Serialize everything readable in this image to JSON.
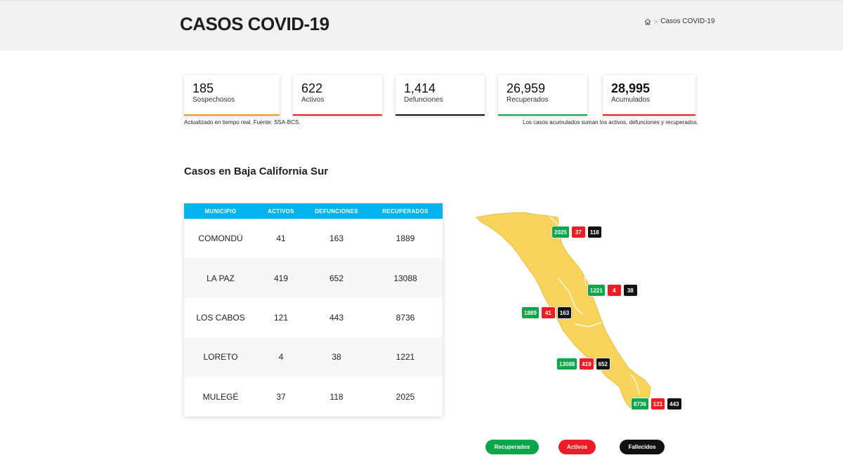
{
  "header": {
    "title": "CASOS COVID-19",
    "breadcrumb_current": "Casos COVID-19"
  },
  "stats": [
    {
      "value": "185",
      "label": "Sospechosos",
      "color": "#f7941d"
    },
    {
      "value": "622",
      "label": "Activos",
      "color": "#ee1c24"
    },
    {
      "value": "1,414",
      "label": "Defunciones",
      "color": "#111111"
    },
    {
      "value": "26,959",
      "label": "Recuperados",
      "color": "#0aa64a"
    },
    {
      "value": "28,995",
      "label": "Acumulados",
      "color": "#ee1c24"
    }
  ],
  "notes": {
    "left": "Actualizado en tiempo real. Fuente: SSA-BCS.",
    "right": "Los casos acumulados suman los activos, defunciones y recuperados."
  },
  "section": {
    "title": "Casos en Baja California Sur"
  },
  "table": {
    "headers": [
      "MUNICIPIO",
      "ACTIVOS",
      "DEFUNCIONES",
      "RECUPERADOS"
    ],
    "rows": [
      [
        "COMONDÚ",
        "41",
        "163",
        "1889"
      ],
      [
        "LA PAZ",
        "419",
        "652",
        "13088"
      ],
      [
        "LOS CABOS",
        "121",
        "443",
        "8736"
      ],
      [
        "LORETO",
        "4",
        "38",
        "1221"
      ],
      [
        "MULEGÉ",
        "37",
        "118",
        "2025"
      ]
    ]
  },
  "map": {
    "fill_color": "#f9d45c",
    "badges": [
      {
        "municipio": "MULEGÉ",
        "recuperados": "2025",
        "activos": "37",
        "fallecidos": "118"
      },
      {
        "municipio": "LORETO",
        "recuperados": "1221",
        "activos": "4",
        "fallecidos": "38"
      },
      {
        "municipio": "COMONDÚ",
        "recuperados": "1889",
        "activos": "41",
        "fallecidos": "163"
      },
      {
        "municipio": "LA PAZ",
        "recuperados": "13088",
        "activos": "419",
        "fallecidos": "652"
      },
      {
        "municipio": "LOS CABOS",
        "recuperados": "8736",
        "activos": "121",
        "fallecidos": "443"
      }
    ]
  },
  "legend": {
    "recuperados": "Recuperados",
    "activos": "Activos",
    "fallecidos": "Fallecidos"
  },
  "icons": {
    "breadcrumb_home": "home-icon"
  }
}
